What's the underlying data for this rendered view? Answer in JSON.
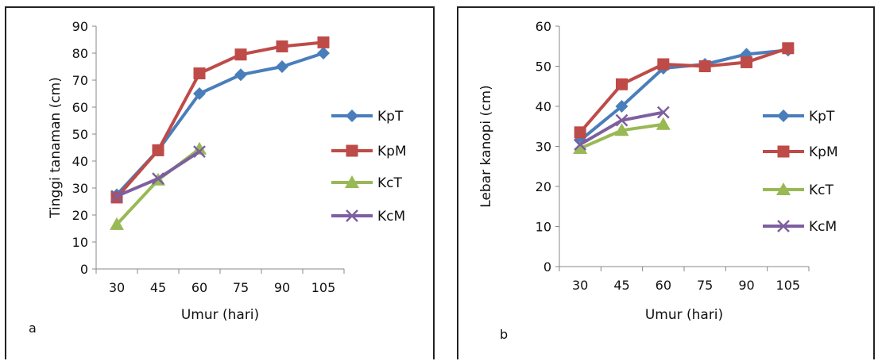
{
  "chart_data": [
    {
      "type": "line",
      "panel_label": "a",
      "xlabel": "Umur (hari)",
      "ylabel": "Tinggi tanaman (cm)",
      "categories": [
        "30",
        "45",
        "60",
        "75",
        "90",
        "105"
      ],
      "ylim": [
        0,
        90
      ],
      "yticks": [
        0,
        10,
        20,
        30,
        40,
        50,
        60,
        70,
        80,
        90
      ],
      "grid": false,
      "legend_position": "right",
      "series": [
        {
          "name": "KpT",
          "color": "#4a7ebb",
          "marker": "diamond",
          "values": [
            27.5,
            44,
            65,
            72,
            75,
            80
          ]
        },
        {
          "name": "KpM",
          "color": "#be4b48",
          "marker": "square",
          "values": [
            26.5,
            44,
            72.5,
            79.5,
            82.5,
            84
          ]
        },
        {
          "name": "KcT",
          "color": "#98b954",
          "marker": "triangle",
          "values": [
            16.5,
            33,
            44.5,
            null,
            null,
            null
          ]
        },
        {
          "name": "KcM",
          "color": "#7d5fa0",
          "marker": "x",
          "values": [
            27,
            33.5,
            43.5,
            null,
            null,
            null
          ]
        }
      ]
    },
    {
      "type": "line",
      "panel_label": "b",
      "xlabel": "Umur (hari)",
      "ylabel": "Lebar kanopi (cm)",
      "categories": [
        "30",
        "45",
        "60",
        "75",
        "90",
        "105"
      ],
      "ylim": [
        0,
        60
      ],
      "yticks": [
        0,
        10,
        20,
        30,
        40,
        50,
        60
      ],
      "grid": false,
      "legend_position": "right",
      "series": [
        {
          "name": "KpT",
          "color": "#4a7ebb",
          "marker": "diamond",
          "values": [
            31.5,
            40,
            49.5,
            50.5,
            53,
            54
          ]
        },
        {
          "name": "KpM",
          "color": "#be4b48",
          "marker": "square",
          "values": [
            33.5,
            45.5,
            50.5,
            50,
            51,
            54.5
          ]
        },
        {
          "name": "KcT",
          "color": "#98b954",
          "marker": "triangle",
          "values": [
            29.5,
            34,
            35.5,
            null,
            null,
            null
          ]
        },
        {
          "name": "KcM",
          "color": "#7d5fa0",
          "marker": "x",
          "values": [
            30.5,
            36.5,
            38.5,
            null,
            null,
            null
          ]
        }
      ]
    }
  ]
}
